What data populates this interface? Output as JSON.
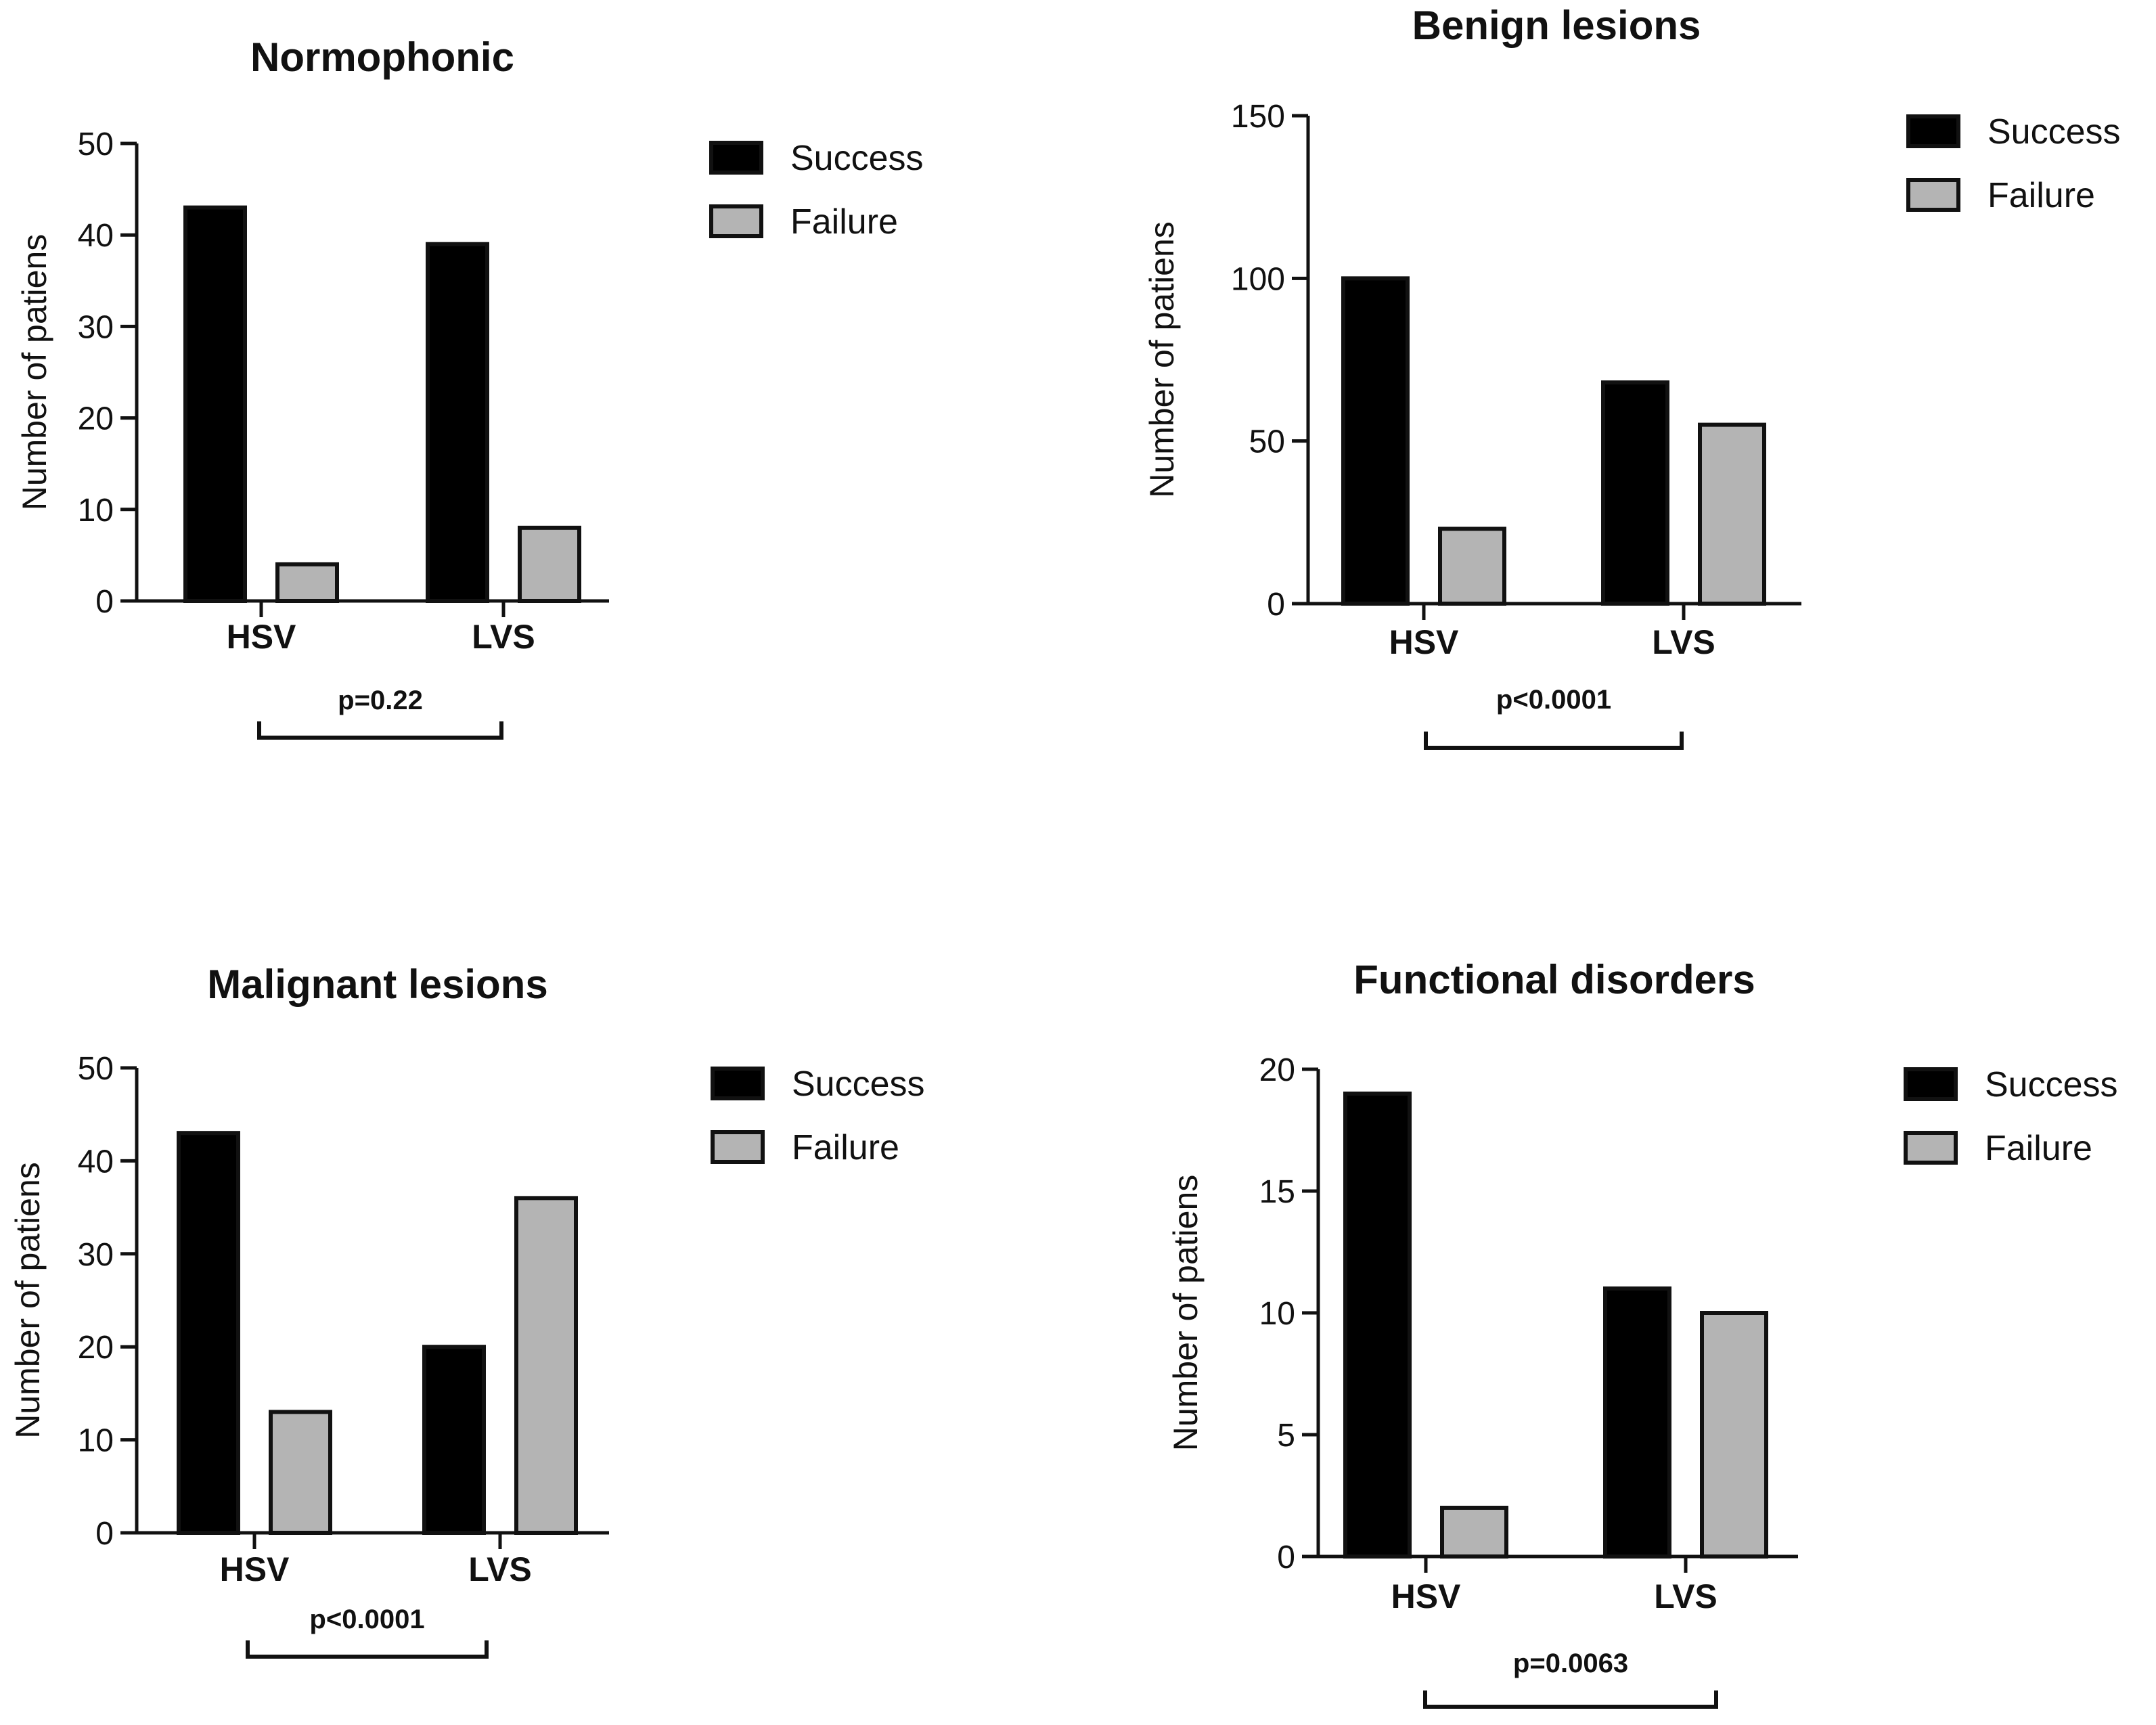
{
  "chart_data": [
    {
      "type": "bar",
      "title": "Normophonic",
      "categories": [
        "HSV",
        "LVS"
      ],
      "series": [
        {
          "name": "Success",
          "values": [
            43,
            39
          ]
        },
        {
          "name": "Failure",
          "values": [
            4,
            8
          ]
        }
      ],
      "xlabel": "",
      "ylabel": "Number of patiens",
      "ylim": [
        0,
        50
      ],
      "yticks": [
        0,
        10,
        20,
        30,
        40,
        50
      ],
      "pvalue": "p=0.22",
      "legend": "right",
      "colors": {
        "Success": "#000000",
        "Failure": "#b4b4b4"
      }
    },
    {
      "type": "bar",
      "title": "Benign lesions",
      "categories": [
        "HSV",
        "LVS"
      ],
      "series": [
        {
          "name": "Success",
          "values": [
            100,
            68
          ]
        },
        {
          "name": "Failure",
          "values": [
            23,
            55
          ]
        }
      ],
      "xlabel": "",
      "ylabel": "Number of patiens",
      "ylim": [
        0,
        150
      ],
      "yticks": [
        0,
        50,
        100,
        150
      ],
      "pvalue": "p<0.0001",
      "legend": "right",
      "colors": {
        "Success": "#000000",
        "Failure": "#b4b4b4"
      }
    },
    {
      "type": "bar",
      "title": "Malignant lesions",
      "categories": [
        "HSV",
        "LVS"
      ],
      "series": [
        {
          "name": "Success",
          "values": [
            43,
            20
          ]
        },
        {
          "name": "Failure",
          "values": [
            13,
            36
          ]
        }
      ],
      "xlabel": "",
      "ylabel": "Number of patiens",
      "ylim": [
        0,
        50
      ],
      "yticks": [
        0,
        10,
        20,
        30,
        40,
        50
      ],
      "pvalue": "p<0.0001",
      "legend": "right",
      "colors": {
        "Success": "#000000",
        "Failure": "#b4b4b4"
      }
    },
    {
      "type": "bar",
      "title": "Functional disorders",
      "categories": [
        "HSV",
        "LVS"
      ],
      "series": [
        {
          "name": "Success",
          "values": [
            19,
            11
          ]
        },
        {
          "name": "Failure",
          "values": [
            2,
            10
          ]
        }
      ],
      "xlabel": "",
      "ylabel": "Number of patiens",
      "ylim": [
        0,
        20
      ],
      "yticks": [
        0,
        5,
        10,
        15,
        20
      ],
      "pvalue": "p=0.0063",
      "legend": "right",
      "colors": {
        "Success": "#000000",
        "Failure": "#b4b4b4"
      }
    }
  ]
}
